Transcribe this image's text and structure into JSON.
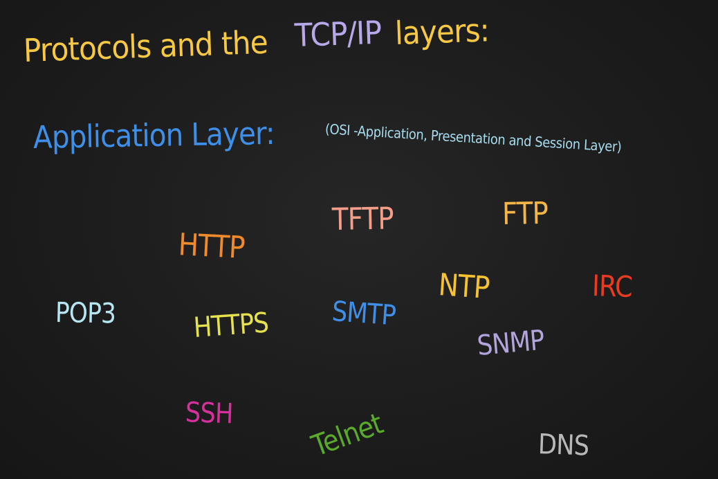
{
  "title": {
    "part1": "Protocols and the",
    "part2": "TCP/IP",
    "part3": "layers:"
  },
  "layer": {
    "name": "Application Layer:",
    "note": "(OSI -Application, Presentation and Session Layer)"
  },
  "protocols": {
    "http": "HTTP",
    "tftp": "TFTP",
    "ftp": "FTP",
    "pop3": "POP3",
    "https": "HTTPS",
    "smtp": "SMTP",
    "ntp": "NTP",
    "irc": "IRC",
    "snmp": "SNMP",
    "ssh": "SSH",
    "telnet": "Telnet",
    "dns": "DNS"
  },
  "colors": {
    "background": "#1c1c1c",
    "title_yellow": "#f7c843",
    "title_purple": "#b8a8e8",
    "layer_blue": "#3f8fe8",
    "note_cyan": "#a8dcef"
  }
}
